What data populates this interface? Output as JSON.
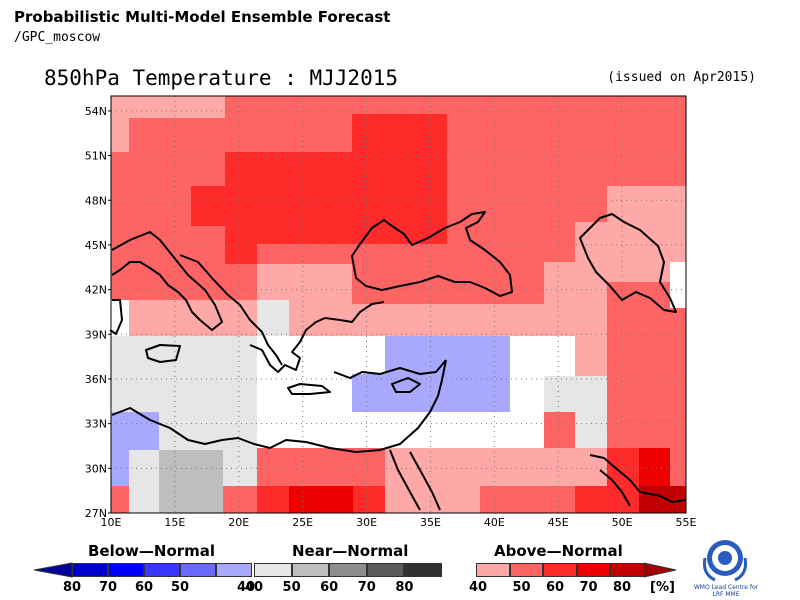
{
  "header": {
    "line1": "Probabilistic Multi-Model Ensemble Forecast",
    "line2": "/GPC_moscow"
  },
  "map": {
    "title": "850hPa Temperature : MJJ2015",
    "issued": "(issued on Apr2015)",
    "lon_labels": [
      "10E",
      "15E",
      "20E",
      "25E",
      "30E",
      "35E",
      "40E",
      "45E",
      "50E",
      "55E"
    ],
    "lat_labels": [
      "54N",
      "51N",
      "48N",
      "45N",
      "42N",
      "39N",
      "36N",
      "33N",
      "30N",
      "27N"
    ],
    "lon_range": [
      10,
      55
    ],
    "lat_range": [
      27,
      55
    ],
    "grid": true
  },
  "legend": {
    "below": {
      "title": "Below—Normal",
      "labels": [
        "80",
        "70",
        "60",
        "50",
        "40"
      ],
      "colors": [
        "#0000cc",
        "#0000ff",
        "#3838ff",
        "#6a6aff",
        "#a8a8ff"
      ]
    },
    "near": {
      "title": "Near—Normal",
      "labels": [
        "40",
        "50",
        "60",
        "70",
        "80"
      ],
      "colors": [
        "#e6e6e6",
        "#bebebe",
        "#8c8c8c",
        "#5a5a5a",
        "#303030"
      ]
    },
    "above": {
      "title": "Above—Normal",
      "labels": [
        "40",
        "50",
        "60",
        "70",
        "80"
      ],
      "colors": [
        "#ffa8a8",
        "#ff6464",
        "#ff2a2a",
        "#ee0000",
        "#c00000"
      ]
    },
    "unit": "[%]"
  },
  "logo": {
    "text_line1": "WMO Lead Centre for",
    "text_line2": "LRF MME",
    "icon": "wmo-emblem-icon"
  }
}
